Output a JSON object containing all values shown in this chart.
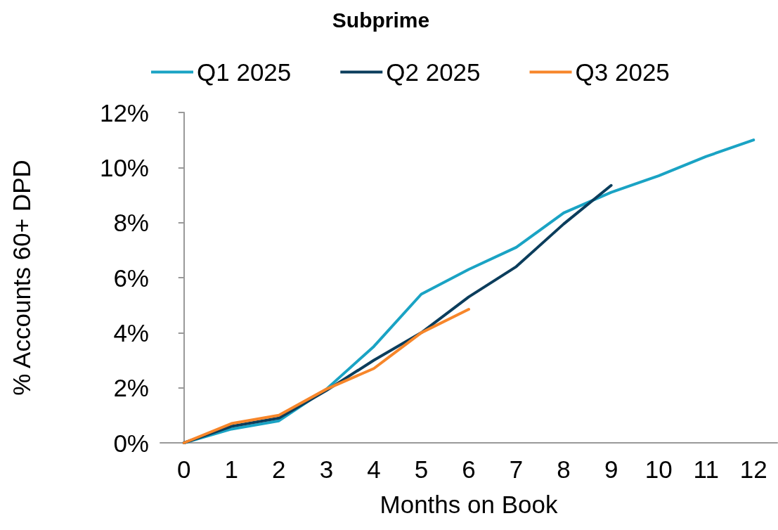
{
  "chart_data": {
    "type": "line",
    "title": "Subprime",
    "xlabel": "Months on Book",
    "ylabel": "% Accounts 60+ DPD",
    "x": [
      0,
      1,
      2,
      3,
      4,
      5,
      6,
      7,
      8,
      9,
      10,
      11,
      12
    ],
    "xlim": [
      -0.5,
      12.5
    ],
    "xticks": [
      0,
      1,
      2,
      3,
      4,
      5,
      6,
      7,
      8,
      9,
      10,
      11,
      12
    ],
    "series": [
      {
        "name": "Q1 2025",
        "color": "#1aa3c4",
        "values": [
          0,
          0.5,
          0.8,
          1.95,
          3.5,
          5.4,
          6.3,
          7.1,
          8.35,
          9.1,
          9.7,
          10.4,
          11.0
        ]
      },
      {
        "name": "Q2 2025",
        "color": "#0b3d5c",
        "values": [
          0,
          0.6,
          0.9,
          1.9,
          3.0,
          4.0,
          5.3,
          6.4,
          7.95,
          9.35,
          null,
          null,
          null
        ]
      },
      {
        "name": "Q3 2025",
        "color": "#f7862a",
        "values": [
          0,
          0.7,
          1.0,
          1.95,
          2.7,
          4.0,
          4.85,
          null,
          null,
          null,
          null,
          null,
          null
        ]
      }
    ],
    "ylim": [
      0,
      12
    ],
    "yticks": [
      {
        "value": 0,
        "label": "0%"
      },
      {
        "value": 2,
        "label": "2%"
      },
      {
        "value": 4,
        "label": "4%"
      },
      {
        "value": 6,
        "label": "6%"
      },
      {
        "value": 8,
        "label": "8%"
      },
      {
        "value": 10,
        "label": "10%"
      },
      {
        "value": 12,
        "label": "12%"
      }
    ],
    "grid": false,
    "legend": "top",
    "marker": "none",
    "line_style": "solid"
  }
}
